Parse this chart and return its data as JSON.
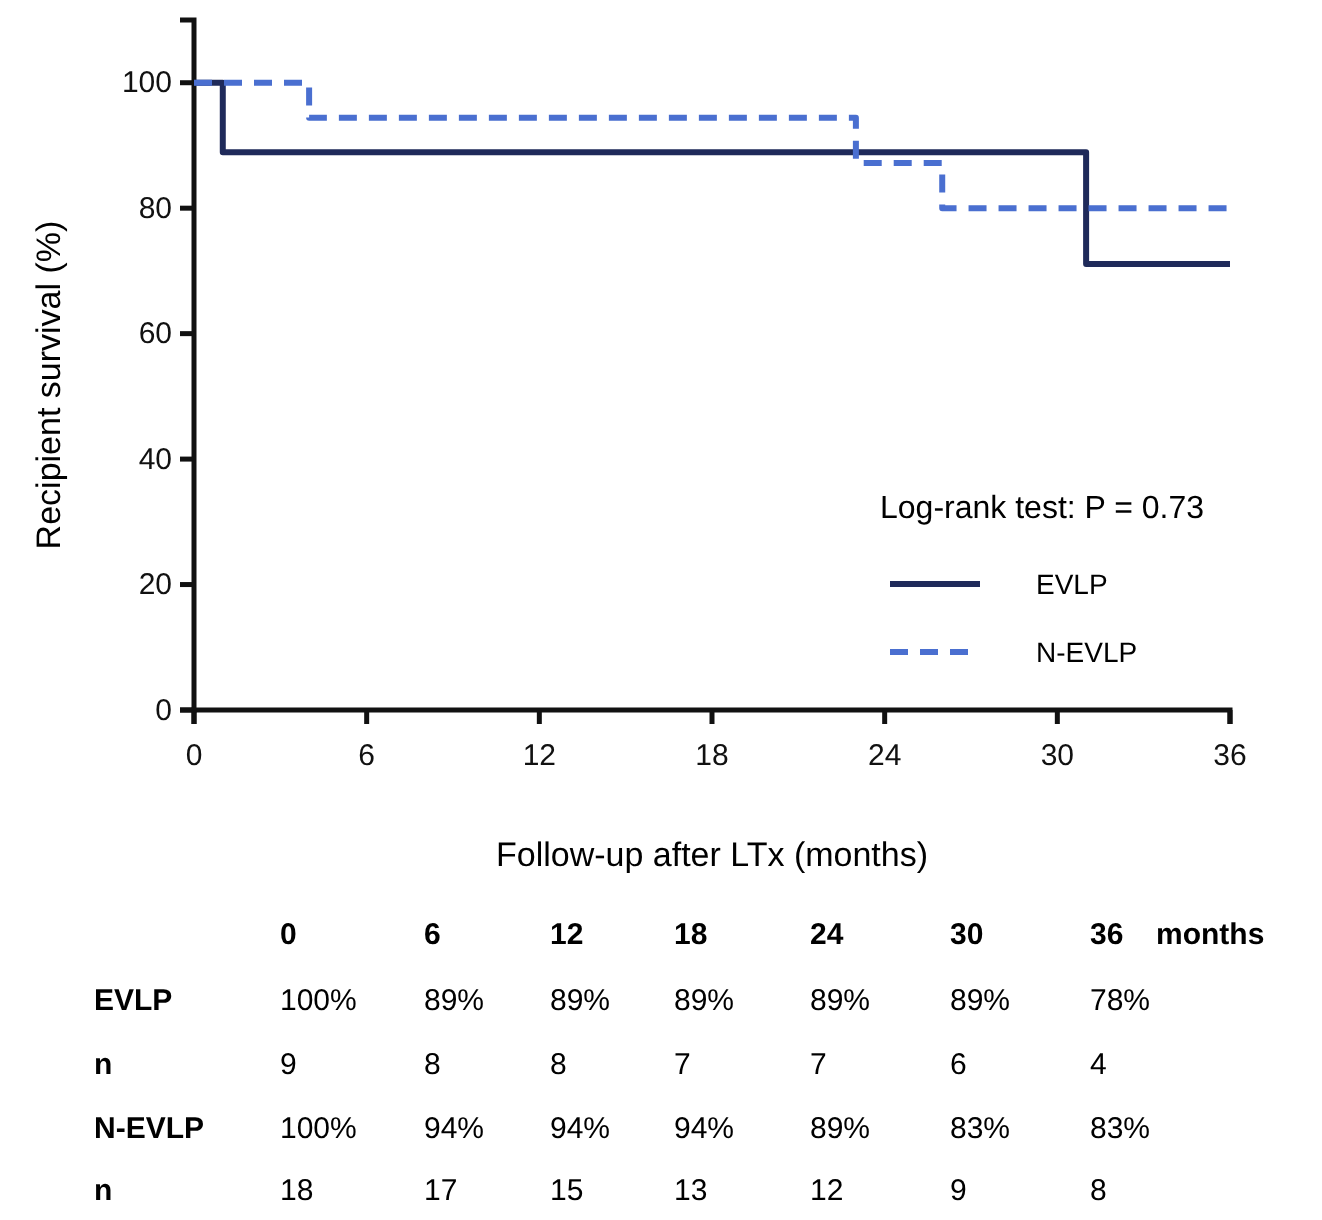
{
  "chart_data": {
    "type": "step",
    "xlabel": "Follow-up after LTx (months)",
    "ylabel": "Recipient survival (%)",
    "xlim": [
      0,
      36
    ],
    "xticks": [
      0,
      6,
      12,
      18,
      24,
      30,
      36
    ],
    "ylim": [
      0,
      110
    ],
    "yticks": [
      0,
      20,
      40,
      60,
      80,
      100
    ],
    "grid": false,
    "legend": "bottom right",
    "series": [
      {
        "name": "EVLP",
        "color": "#1f2a5a",
        "line_style": "solid",
        "x": [
          0,
          1,
          31,
          36
        ],
        "values": [
          100,
          88.9,
          71.1,
          71.1
        ]
      },
      {
        "name": "N-EVLP",
        "color": "#4a6fd0",
        "line_style": "dashed",
        "x": [
          0,
          4,
          23,
          26,
          36
        ],
        "values": [
          100,
          94.4,
          87.2,
          80,
          80
        ]
      }
    ],
    "annotations": [
      "Log-rank test: P = 0.73",
      "0",
      "6",
      "12",
      "18",
      "24",
      "30",
      "36",
      "months",
      "EVLP",
      "100%",
      "89%",
      "89%",
      "89%",
      "89%",
      "89%",
      "78%",
      "n",
      "9",
      "8",
      "8",
      "7",
      "7",
      "6",
      "4",
      "N-EVLP",
      "100%",
      "94%",
      "94%",
      "94%",
      "89%",
      "83%",
      "83%",
      "n",
      "18",
      "17",
      "15",
      "13",
      "12",
      "9",
      "8"
    ]
  }
}
